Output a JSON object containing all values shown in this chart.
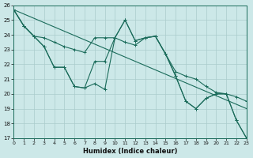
{
  "background_color": "#cce8e8",
  "grid_color": "#aacccc",
  "line_color": "#1a6b5a",
  "xlabel": "Humidex (Indice chaleur)",
  "xlim": [
    0,
    23
  ],
  "ylim": [
    17,
    26
  ],
  "yticks": [
    17,
    18,
    19,
    20,
    21,
    22,
    23,
    24,
    25,
    26
  ],
  "xticks": [
    0,
    1,
    2,
    3,
    4,
    5,
    6,
    7,
    8,
    9,
    10,
    11,
    12,
    13,
    14,
    15,
    16,
    17,
    18,
    19,
    20,
    21,
    22,
    23
  ],
  "series": [
    {
      "x": [
        0,
        1,
        2,
        3,
        4,
        5,
        6,
        7,
        8,
        9,
        10,
        11,
        12,
        13,
        14,
        15,
        16,
        17,
        18,
        19,
        20,
        21,
        22,
        23
      ],
      "y": [
        25.7,
        24.6,
        23.9,
        23.8,
        23.5,
        23.2,
        23.0,
        22.8,
        23.8,
        23.8,
        23.8,
        23.5,
        23.3,
        23.8,
        23.9,
        22.7,
        21.5,
        21.2,
        21.0,
        20.5,
        20.1,
        20.0,
        19.8,
        19.5
      ],
      "marker": true
    },
    {
      "x": [
        0,
        1,
        2,
        3,
        4,
        5,
        6,
        7,
        8,
        9,
        10,
        11,
        12,
        13,
        14,
        15,
        16,
        17,
        18,
        19,
        20,
        21,
        22,
        23
      ],
      "y": [
        25.7,
        24.6,
        23.9,
        23.1,
        23.0,
        22.9,
        22.5,
        22.3,
        22.2,
        22.2,
        22.0,
        21.9,
        21.7,
        21.5,
        21.3,
        21.0,
        20.8,
        20.5,
        20.2,
        20.0,
        19.7,
        19.5,
        19.2,
        19.0
      ],
      "marker": false
    },
    {
      "x": [
        0,
        1,
        2,
        3,
        4,
        5,
        6,
        7,
        8,
        9,
        10,
        11,
        12,
        13,
        14,
        15,
        16,
        17,
        18,
        19,
        20,
        21,
        22,
        23
      ],
      "y": [
        25.7,
        24.6,
        23.9,
        23.2,
        21.8,
        21.8,
        20.5,
        20.4,
        22.2,
        22.2,
        23.8,
        25.0,
        23.6,
        23.8,
        23.9,
        22.7,
        21.2,
        19.5,
        19.0,
        19.7,
        20.0,
        20.0,
        18.2,
        17.0
      ],
      "marker": true
    },
    {
      "x": [
        0,
        1,
        2,
        3,
        4,
        5,
        6,
        7,
        8,
        9,
        10,
        11,
        12,
        13,
        14,
        15,
        16,
        17,
        18,
        19,
        20,
        21,
        22,
        23
      ],
      "y": [
        25.7,
        24.6,
        23.9,
        23.2,
        21.8,
        21.8,
        20.5,
        20.4,
        20.7,
        20.3,
        23.8,
        25.0,
        23.6,
        23.8,
        23.9,
        22.7,
        21.2,
        19.5,
        19.0,
        19.7,
        20.0,
        20.0,
        18.2,
        17.0
      ],
      "marker": true
    }
  ]
}
